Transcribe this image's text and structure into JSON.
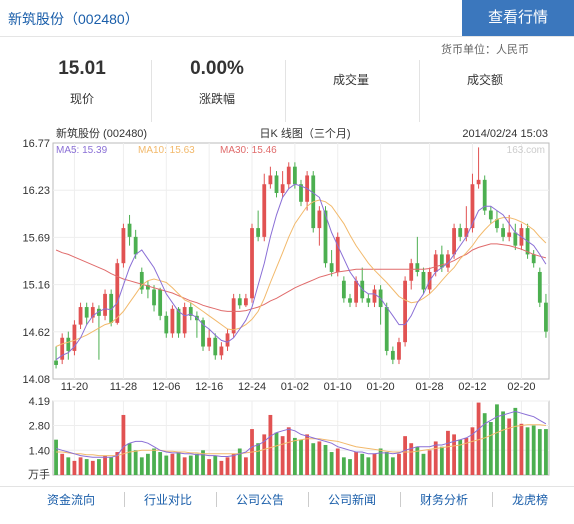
{
  "header": {
    "stock_title": "新筑股份（002480）",
    "view_quote_button": "查看行情"
  },
  "currency_label": "货币单位：人民币",
  "stats": {
    "price": {
      "value": "15.01",
      "label": "现价"
    },
    "change": {
      "value": "0.00%",
      "label": "涨跌幅"
    },
    "volume": {
      "label": "成交量"
    },
    "turnover": {
      "label": "成交额"
    }
  },
  "chart_data": {
    "type": "candlestick",
    "title": "日K 线图（三个月)",
    "stock_label": "新筑股份 (002480)",
    "date_label": "2014/02/24 15:03",
    "watermark": "163.com",
    "ylim": [
      14.08,
      16.77
    ],
    "y_ticks": [
      "16.77",
      "16.23",
      "15.69",
      "15.16",
      "14.62",
      "14.08"
    ],
    "x_ticks": [
      "11-20",
      "11-28",
      "12-06",
      "12-16",
      "12-24",
      "01-02",
      "01-10",
      "01-20",
      "01-28",
      "02-12",
      "02-20"
    ],
    "ma_labels": [
      {
        "name": "MA5",
        "value": "15.39",
        "color": "#8a6fd6"
      },
      {
        "name": "MA10",
        "value": "15.63",
        "color": "#f2b96b"
      },
      {
        "name": "MA30",
        "value": "15.46",
        "color": "#e06b6b"
      }
    ],
    "candles": [
      [
        14.29,
        14.24,
        14.45,
        14.2
      ],
      [
        14.3,
        14.55,
        14.6,
        14.25
      ],
      [
        14.55,
        14.4,
        14.62,
        14.3
      ],
      [
        14.4,
        14.7,
        14.75,
        14.35
      ],
      [
        14.7,
        14.9,
        14.95,
        14.65
      ],
      [
        14.9,
        14.78,
        14.95,
        14.7
      ],
      [
        14.78,
        14.9,
        14.95,
        14.72
      ],
      [
        14.88,
        14.8,
        14.92,
        14.3
      ],
      [
        14.8,
        15.05,
        15.1,
        14.75
      ],
      [
        15.05,
        14.72,
        15.1,
        14.68
      ],
      [
        14.72,
        15.4,
        15.45,
        14.7
      ],
      [
        15.4,
        15.8,
        15.85,
        15.35
      ],
      [
        15.85,
        15.7,
        15.95,
        15.6
      ],
      [
        15.7,
        15.5,
        15.78,
        15.45
      ],
      [
        15.3,
        15.1,
        15.35,
        15.05
      ],
      [
        15.15,
        15.1,
        15.2,
        15.0
      ],
      [
        15.1,
        14.92,
        15.15,
        14.85
      ],
      [
        15.1,
        14.8,
        15.12,
        14.75
      ],
      [
        14.8,
        14.6,
        14.85,
        14.55
      ],
      [
        14.6,
        14.88,
        14.92,
        14.55
      ],
      [
        14.88,
        14.6,
        14.9,
        14.55
      ],
      [
        14.6,
        14.9,
        14.95,
        14.55
      ],
      [
        14.9,
        14.8,
        14.95,
        14.75
      ],
      [
        14.8,
        14.75,
        14.85,
        14.55
      ],
      [
        14.75,
        14.45,
        14.78,
        14.4
      ],
      [
        14.45,
        14.55,
        14.65,
        14.4
      ],
      [
        14.55,
        14.35,
        14.6,
        14.3
      ],
      [
        14.35,
        14.45,
        14.5,
        14.3
      ],
      [
        14.45,
        14.6,
        14.65,
        14.4
      ],
      [
        14.6,
        15.0,
        15.05,
        14.55
      ],
      [
        15.0,
        14.92,
        15.05,
        14.88
      ],
      [
        14.92,
        15.0,
        15.05,
        14.9
      ],
      [
        15.0,
        15.8,
        15.85,
        14.95
      ],
      [
        15.8,
        15.7,
        16.0,
        15.65
      ],
      [
        15.7,
        16.3,
        16.42,
        15.65
      ],
      [
        16.3,
        16.4,
        16.5,
        16.25
      ],
      [
        16.4,
        16.2,
        16.45,
        16.15
      ],
      [
        16.2,
        16.3,
        16.45,
        16.15
      ],
      [
        16.3,
        16.5,
        16.55,
        16.25
      ],
      [
        16.5,
        16.3,
        16.55,
        16.25
      ],
      [
        16.3,
        16.1,
        16.35,
        16.05
      ],
      [
        16.1,
        16.4,
        16.45,
        16.0
      ],
      [
        16.4,
        15.8,
        16.45,
        15.75
      ],
      [
        15.8,
        16.0,
        16.05,
        15.6
      ],
      [
        16.0,
        15.4,
        16.05,
        15.35
      ],
      [
        15.4,
        15.3,
        15.55,
        15.25
      ],
      [
        15.3,
        15.7,
        15.75,
        15.25
      ],
      [
        15.2,
        15.0,
        15.25,
        14.95
      ],
      [
        15.0,
        14.95,
        15.05,
        14.9
      ],
      [
        14.95,
        15.2,
        15.25,
        14.9
      ],
      [
        15.2,
        15.0,
        15.35,
        14.95
      ],
      [
        15.0,
        14.95,
        15.05,
        14.9
      ],
      [
        14.95,
        15.1,
        15.15,
        14.9
      ],
      [
        15.1,
        14.9,
        15.15,
        14.7
      ],
      [
        14.9,
        14.4,
        14.95,
        14.35
      ],
      [
        14.4,
        14.3,
        14.45,
        14.25
      ],
      [
        14.3,
        14.5,
        14.55,
        14.25
      ],
      [
        14.5,
        15.2,
        15.25,
        14.45
      ],
      [
        15.2,
        15.4,
        15.45,
        15.1
      ],
      [
        15.4,
        15.3,
        15.7,
        15.25
      ],
      [
        15.3,
        15.1,
        15.35,
        15.05
      ],
      [
        15.1,
        15.3,
        15.35,
        15.05
      ],
      [
        15.3,
        15.5,
        15.55,
        15.25
      ],
      [
        15.5,
        15.35,
        15.6,
        15.3
      ],
      [
        15.35,
        15.5,
        15.55,
        15.3
      ],
      [
        15.5,
        15.8,
        15.85,
        15.45
      ],
      [
        15.8,
        15.7,
        15.85,
        15.65
      ],
      [
        15.7,
        15.8,
        16.05,
        15.65
      ],
      [
        15.8,
        16.3,
        16.42,
        15.75
      ],
      [
        16.3,
        16.35,
        16.72,
        16.25
      ],
      [
        16.35,
        16.0,
        16.4,
        15.95
      ],
      [
        16.0,
        15.9,
        16.05,
        15.85
      ],
      [
        15.9,
        15.8,
        16.0,
        15.75
      ],
      [
        15.8,
        15.7,
        15.85,
        15.65
      ],
      [
        15.7,
        15.75,
        15.95,
        15.65
      ],
      [
        15.75,
        15.6,
        15.85,
        15.55
      ],
      [
        15.6,
        15.8,
        15.85,
        15.55
      ],
      [
        15.8,
        15.5,
        15.85,
        15.45
      ],
      [
        15.5,
        15.4,
        15.55,
        15.35
      ],
      [
        15.3,
        14.95,
        15.35,
        14.9
      ],
      [
        14.95,
        14.62,
        15.05,
        14.55
      ]
    ],
    "ma5": [
      14.3,
      14.35,
      14.38,
      14.45,
      14.55,
      14.7,
      14.8,
      14.85,
      14.88,
      14.87,
      14.95,
      15.15,
      15.35,
      15.5,
      15.55,
      15.45,
      15.35,
      15.2,
      15.05,
      14.95,
      14.85,
      14.8,
      14.82,
      14.78,
      14.7,
      14.65,
      14.58,
      14.52,
      14.5,
      14.55,
      14.65,
      14.75,
      14.9,
      15.15,
      15.4,
      15.7,
      15.95,
      16.15,
      16.25,
      16.3,
      16.28,
      16.25,
      16.2,
      16.15,
      15.95,
      15.75,
      15.6,
      15.45,
      15.3,
      15.2,
      15.1,
      15.05,
      15.05,
      15.0,
      14.9,
      14.8,
      14.7,
      14.7,
      14.8,
      14.95,
      15.05,
      15.2,
      15.3,
      15.35,
      15.4,
      15.5,
      15.6,
      15.7,
      15.85,
      16.0,
      16.05,
      16.05,
      16.0,
      15.95,
      15.85,
      15.75,
      15.7,
      15.65,
      15.6,
      15.5,
      15.39
    ],
    "ma10": [
      14.45,
      14.48,
      14.5,
      14.52,
      14.55,
      14.58,
      14.62,
      14.66,
      14.7,
      14.72,
      14.78,
      14.85,
      14.95,
      15.05,
      15.15,
      15.2,
      15.22,
      15.2,
      15.18,
      15.12,
      15.05,
      14.98,
      14.95,
      14.9,
      14.85,
      14.8,
      14.75,
      14.7,
      14.65,
      14.64,
      14.66,
      14.7,
      14.76,
      14.85,
      15.0,
      15.18,
      15.35,
      15.52,
      15.7,
      15.85,
      15.95,
      16.05,
      16.1,
      16.12,
      16.1,
      16.05,
      15.95,
      15.85,
      15.72,
      15.6,
      15.5,
      15.4,
      15.32,
      15.25,
      15.18,
      15.1,
      15.02,
      14.98,
      14.95,
      14.96,
      15.0,
      15.05,
      15.12,
      15.2,
      15.28,
      15.35,
      15.45,
      15.52,
      15.6,
      15.7,
      15.78,
      15.85,
      15.9,
      15.92,
      15.92,
      15.9,
      15.87,
      15.83,
      15.78,
      15.7,
      15.63
    ],
    "ma30": [
      15.55,
      15.52,
      15.5,
      15.47,
      15.44,
      15.41,
      15.38,
      15.35,
      15.32,
      15.28,
      15.25,
      15.22,
      15.2,
      15.18,
      15.16,
      15.14,
      15.12,
      15.1,
      15.08,
      15.06,
      15.03,
      15.0,
      14.97,
      14.95,
      14.92,
      14.9,
      14.88,
      14.86,
      14.85,
      14.85,
      14.85,
      14.86,
      14.88,
      14.9,
      14.93,
      14.97,
      15.0,
      15.04,
      15.08,
      15.12,
      15.15,
      15.18,
      15.21,
      15.24,
      15.26,
      15.28,
      15.3,
      15.31,
      15.32,
      15.33,
      15.33,
      15.33,
      15.33,
      15.33,
      15.33,
      15.33,
      15.33,
      15.33,
      15.33,
      15.33,
      15.33,
      15.34,
      15.36,
      15.38,
      15.4,
      15.43,
      15.47,
      15.5,
      15.55,
      15.58,
      15.6,
      15.62,
      15.62,
      15.61,
      15.6,
      15.58,
      15.56,
      15.53,
      15.5,
      15.48,
      15.46
    ],
    "volume": {
      "unit_label": "万手",
      "ylim": [
        0,
        4.19
      ],
      "y_ticks": [
        "4.19",
        "2.80",
        "1.40"
      ],
      "values": [
        2.0,
        1.2,
        1.0,
        0.8,
        1.0,
        0.9,
        0.8,
        0.9,
        1.1,
        1.0,
        1.3,
        3.4,
        1.8,
        1.4,
        1.0,
        1.2,
        1.5,
        1.3,
        1.1,
        1.2,
        1.3,
        1.0,
        1.1,
        1.2,
        1.4,
        0.9,
        1.1,
        0.8,
        1.0,
        1.2,
        1.5,
        1.0,
        2.6,
        1.8,
        2.3,
        3.4,
        2.4,
        2.2,
        2.7,
        2.1,
        2.0,
        2.3,
        1.8,
        1.9,
        1.7,
        1.3,
        1.5,
        1.0,
        0.9,
        1.3,
        1.2,
        1.0,
        1.2,
        1.5,
        1.3,
        1.0,
        1.2,
        2.2,
        1.8,
        1.6,
        1.2,
        1.4,
        1.9,
        1.6,
        2.5,
        2.3,
        2.0,
        2.1,
        2.7,
        4.1,
        3.5,
        3.0,
        4.0,
        3.6,
        3.2,
        3.8,
        2.9,
        2.7,
        2.8,
        2.6,
        2.6
      ],
      "ma_a": [
        1.5,
        1.4,
        1.3,
        1.2,
        1.1,
        1.05,
        1.0,
        1.0,
        1.0,
        1.0,
        1.1,
        1.6,
        1.8,
        1.9,
        1.9,
        1.8,
        1.6,
        1.4,
        1.3,
        1.25,
        1.25,
        1.2,
        1.2,
        1.15,
        1.15,
        1.1,
        1.1,
        1.05,
        1.05,
        1.1,
        1.2,
        1.3,
        1.6,
        1.7,
        1.9,
        2.2,
        2.4,
        2.5,
        2.6,
        2.5,
        2.3,
        2.2,
        2.1,
        2.0,
        1.9,
        1.8,
        1.6,
        1.5,
        1.4,
        1.3,
        1.3,
        1.2,
        1.2,
        1.25,
        1.25,
        1.2,
        1.25,
        1.4,
        1.5,
        1.6,
        1.6,
        1.6,
        1.7,
        1.7,
        1.8,
        1.9,
        2.0,
        2.1,
        2.3,
        2.6,
        2.9,
        3.1,
        3.3,
        3.4,
        3.5,
        3.6,
        3.5,
        3.4,
        3.3,
        3.1,
        2.9
      ],
      "ma_b": [
        1.3,
        1.3,
        1.25,
        1.2,
        1.2,
        1.15,
        1.15,
        1.1,
        1.1,
        1.1,
        1.1,
        1.2,
        1.3,
        1.35,
        1.4,
        1.4,
        1.4,
        1.4,
        1.35,
        1.35,
        1.3,
        1.3,
        1.25,
        1.25,
        1.2,
        1.2,
        1.2,
        1.2,
        1.2,
        1.2,
        1.2,
        1.25,
        1.3,
        1.35,
        1.45,
        1.55,
        1.65,
        1.75,
        1.85,
        1.95,
        2.0,
        2.05,
        2.05,
        2.05,
        2.0,
        1.95,
        1.9,
        1.8,
        1.7,
        1.6,
        1.55,
        1.5,
        1.45,
        1.4,
        1.35,
        1.3,
        1.3,
        1.3,
        1.3,
        1.35,
        1.4,
        1.45,
        1.5,
        1.55,
        1.6,
        1.65,
        1.7,
        1.8,
        1.9,
        2.0,
        2.1,
        2.25,
        2.4,
        2.55,
        2.65,
        2.75,
        2.8,
        2.85,
        2.85,
        2.85,
        2.8
      ]
    }
  },
  "bottom_nav": [
    "资金流向",
    "行业对比",
    "公司公告",
    "公司新闻",
    "财务分析",
    "龙虎榜"
  ]
}
